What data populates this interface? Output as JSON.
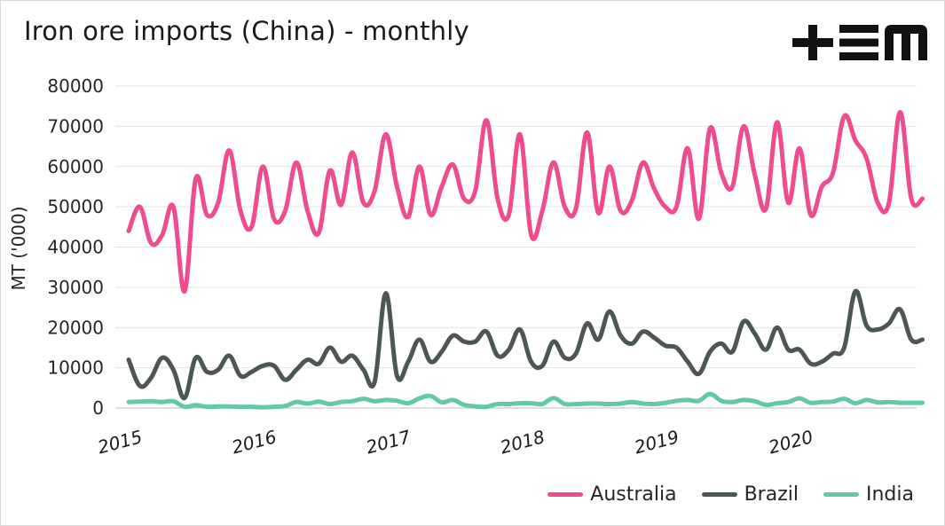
{
  "title": "Iron ore imports (China) - monthly",
  "logo_text": "+EM",
  "chart_data": {
    "type": "line",
    "title": "Iron ore imports (China) - monthly",
    "xlabel": "",
    "ylabel": "MT ('000)",
    "ylim": [
      0,
      80000
    ],
    "yticks": [
      0,
      10000,
      20000,
      30000,
      40000,
      50000,
      60000,
      70000,
      80000
    ],
    "xlim": [
      "2015-01",
      "2020-12"
    ],
    "xticks": [
      "2015",
      "2016",
      "2017",
      "2018",
      "2019",
      "2020"
    ],
    "grid": "horizontal",
    "legend_position": "bottom-right",
    "x": [
      "2015-01",
      "2015-02",
      "2015-03",
      "2015-04",
      "2015-05",
      "2015-06",
      "2015-07",
      "2015-08",
      "2015-09",
      "2015-10",
      "2015-11",
      "2015-12",
      "2016-01",
      "2016-02",
      "2016-03",
      "2016-04",
      "2016-05",
      "2016-06",
      "2016-07",
      "2016-08",
      "2016-09",
      "2016-10",
      "2016-11",
      "2016-12",
      "2017-01",
      "2017-02",
      "2017-03",
      "2017-04",
      "2017-05",
      "2017-06",
      "2017-07",
      "2017-08",
      "2017-09",
      "2017-10",
      "2017-11",
      "2017-12",
      "2018-01",
      "2018-02",
      "2018-03",
      "2018-04",
      "2018-05",
      "2018-06",
      "2018-07",
      "2018-08",
      "2018-09",
      "2018-10",
      "2018-11",
      "2018-12",
      "2019-01",
      "2019-02",
      "2019-03",
      "2019-04",
      "2019-05",
      "2019-06",
      "2019-07",
      "2019-08",
      "2019-09",
      "2019-10",
      "2019-11",
      "2019-12",
      "2020-01",
      "2020-02",
      "2020-03",
      "2020-04",
      "2020-05",
      "2020-06",
      "2020-07",
      "2020-08",
      "2020-09",
      "2020-10",
      "2020-11",
      "2020-12"
    ],
    "series": [
      {
        "name": "Australia",
        "color": "#ef4b8f",
        "values": [
          44000,
          50000,
          41000,
          43000,
          50000,
          29000,
          57000,
          48000,
          51000,
          64000,
          49000,
          45000,
          60000,
          47000,
          49000,
          61000,
          49000,
          43500,
          59000,
          50500,
          63500,
          51000,
          54000,
          68000,
          55000,
          47500,
          60000,
          48000,
          55000,
          60500,
          52000,
          54000,
          71500,
          52000,
          48000,
          68000,
          43000,
          49000,
          61000,
          50000,
          49500,
          68500,
          48500,
          60000,
          49000,
          51500,
          61000,
          54500,
          50000,
          50000,
          64500,
          47000,
          69500,
          58500,
          55000,
          70000,
          58000,
          49500,
          71000,
          51000,
          64500,
          48000,
          55000,
          58500,
          72500,
          66500,
          62000,
          51000,
          51000,
          73500,
          52000,
          52000
        ]
      },
      {
        "name": "Brazil",
        "color": "#4d5656",
        "values": [
          12000,
          5500,
          7500,
          12500,
          9500,
          2500,
          12500,
          9000,
          9500,
          13000,
          8000,
          9000,
          10500,
          10500,
          7000,
          9500,
          12000,
          11000,
          15000,
          11500,
          13000,
          9500,
          6500,
          28500,
          8000,
          11500,
          17000,
          11500,
          14000,
          18000,
          16500,
          16500,
          19000,
          13000,
          14500,
          19500,
          11500,
          10500,
          16500,
          12500,
          13500,
          21000,
          17000,
          24000,
          18000,
          16000,
          19000,
          17500,
          15500,
          15000,
          11500,
          8500,
          14000,
          16000,
          14000,
          21500,
          18500,
          14500,
          20000,
          14500,
          14500,
          11000,
          11500,
          13500,
          15000,
          29000,
          20500,
          19500,
          21000,
          24500,
          17000,
          17000
        ]
      },
      {
        "name": "India",
        "color": "#63c9a4",
        "values": [
          1500,
          1600,
          1700,
          1500,
          1700,
          300,
          700,
          300,
          400,
          400,
          300,
          300,
          200,
          300,
          500,
          1500,
          1100,
          1600,
          1000,
          1500,
          1700,
          2300,
          1700,
          2000,
          1800,
          1200,
          2400,
          3000,
          1400,
          2000,
          800,
          400,
          300,
          1000,
          1000,
          1200,
          1200,
          1000,
          2500,
          1000,
          1000,
          1100,
          1100,
          1000,
          1100,
          1500,
          1100,
          1000,
          1300,
          1800,
          2000,
          1800,
          3500,
          1800,
          1500,
          2000,
          1700,
          800,
          1200,
          1500,
          2400,
          1300,
          1500,
          1600,
          2300,
          1200,
          2000,
          1400,
          1500,
          1300,
          1300,
          1300
        ]
      }
    ]
  }
}
